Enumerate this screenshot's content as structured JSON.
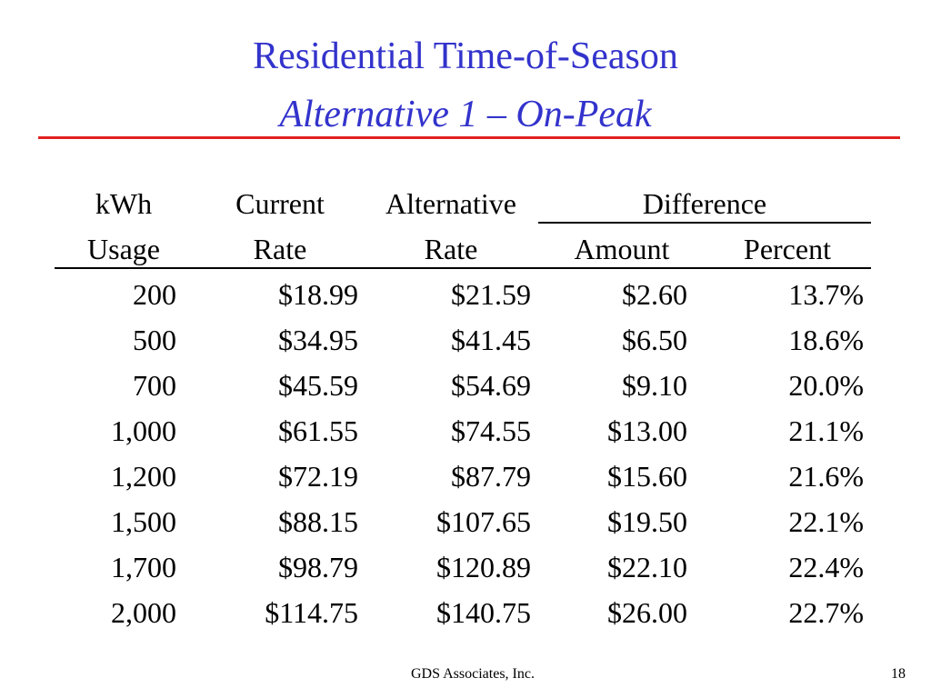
{
  "title": {
    "line1": "Residential Time-of-Season",
    "line2": "Alternative 1 – On-Peak"
  },
  "table": {
    "headers": {
      "kwh_top": "kWh",
      "kwh_bottom": "Usage",
      "current_top": "Current",
      "current_bottom": "Rate",
      "alt_top": "Alternative",
      "alt_bottom": "Rate",
      "difference": "Difference",
      "amount": "Amount",
      "percent": "Percent"
    },
    "rows": [
      [
        "200",
        "$18.99",
        "$21.59",
        "$2.60",
        "13.7%"
      ],
      [
        "500",
        "$34.95",
        "$41.45",
        "$6.50",
        "18.6%"
      ],
      [
        "700",
        "$45.59",
        "$54.69",
        "$9.10",
        "20.0%"
      ],
      [
        "1,000",
        "$61.55",
        "$74.55",
        "$13.00",
        "21.1%"
      ],
      [
        "1,200",
        "$72.19",
        "$87.79",
        "$15.60",
        "21.6%"
      ],
      [
        "1,500",
        "$88.15",
        "$107.65",
        "$19.50",
        "22.1%"
      ],
      [
        "1,700",
        "$98.79",
        "$120.89",
        "$22.10",
        "22.4%"
      ],
      [
        "2,000",
        "$114.75",
        "$140.75",
        "$26.00",
        "22.7%"
      ]
    ]
  },
  "footer": {
    "company": "GDS Associates, Inc.",
    "page_number": "18"
  }
}
